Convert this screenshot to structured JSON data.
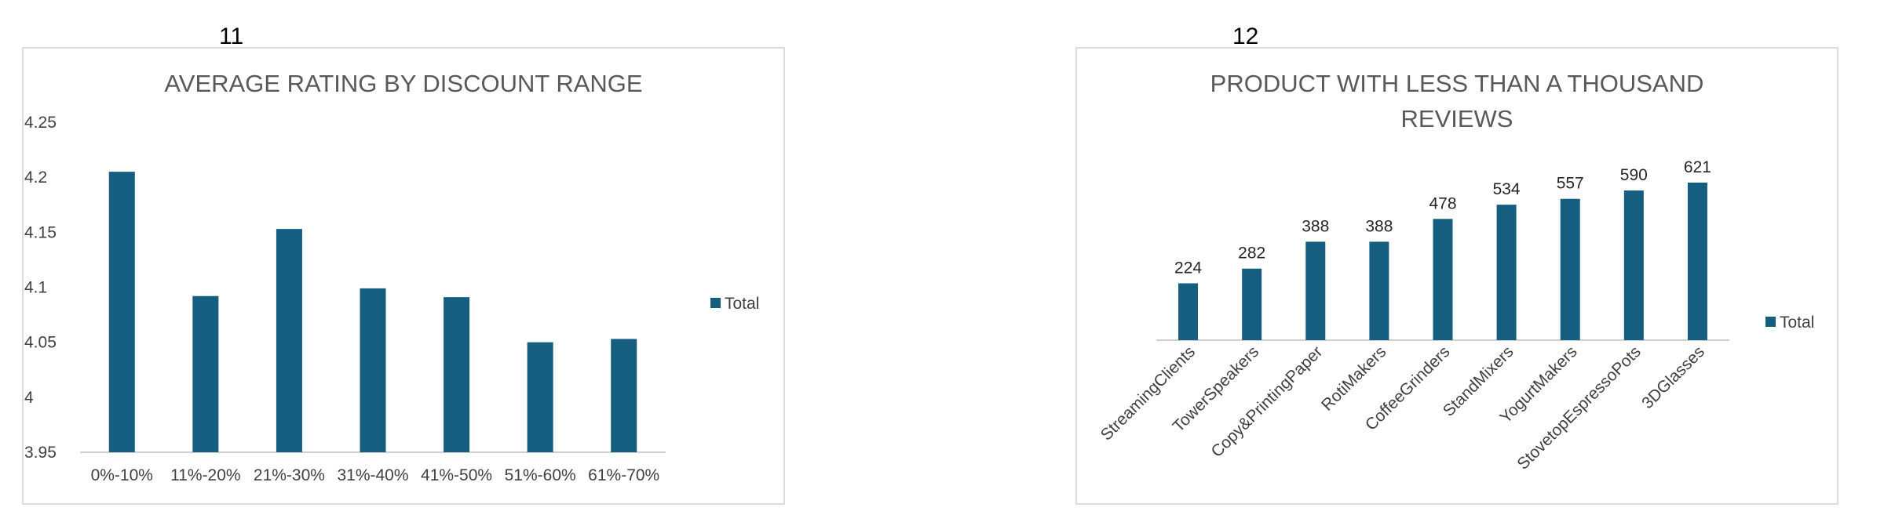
{
  "cells": {
    "left_number": "11",
    "right_number": "12"
  },
  "colors": {
    "bar": "#155e80",
    "frame": "#d0d0d0",
    "axis": "#bfbfbf"
  },
  "chart_data": [
    {
      "type": "bar",
      "title": "AVERAGE RATING BY DISCOUNT RANGE",
      "categories": [
        "0%-10%",
        "11%-20%",
        "21%-30%",
        "31%-40%",
        "41%-50%",
        "51%-60%",
        "61%-70%"
      ],
      "series": [
        {
          "name": "Total",
          "values": [
            4.205,
            4.092,
            4.153,
            4.099,
            4.091,
            4.05,
            4.053
          ]
        }
      ],
      "ylim": [
        3.95,
        4.25
      ],
      "yticks": [
        "4.25",
        "4.2",
        "4.15",
        "4.1",
        "4.05",
        "4",
        "3.95"
      ],
      "legend": "right",
      "grid": false
    },
    {
      "type": "bar",
      "title_lines": [
        "PRODUCT WITH LESS THAN A THOUSAND",
        "REVIEWS"
      ],
      "categories": [
        "StreamingClients",
        "TowerSpeakers",
        "Copy&PrintingPaper",
        "RotiMakers",
        "CoffeeGrinders",
        "StandMixers",
        "YogurtMakers",
        "StovetopEspressoPots",
        "3DGlasses"
      ],
      "series": [
        {
          "name": "Total",
          "values": [
            224,
            282,
            388,
            388,
            478,
            534,
            557,
            590,
            621
          ]
        }
      ],
      "data_labels": [
        "224",
        "282",
        "388",
        "388",
        "478",
        "534",
        "557",
        "590",
        "621"
      ],
      "ylim": [
        0,
        621
      ],
      "legend": "right",
      "grid": false
    }
  ]
}
